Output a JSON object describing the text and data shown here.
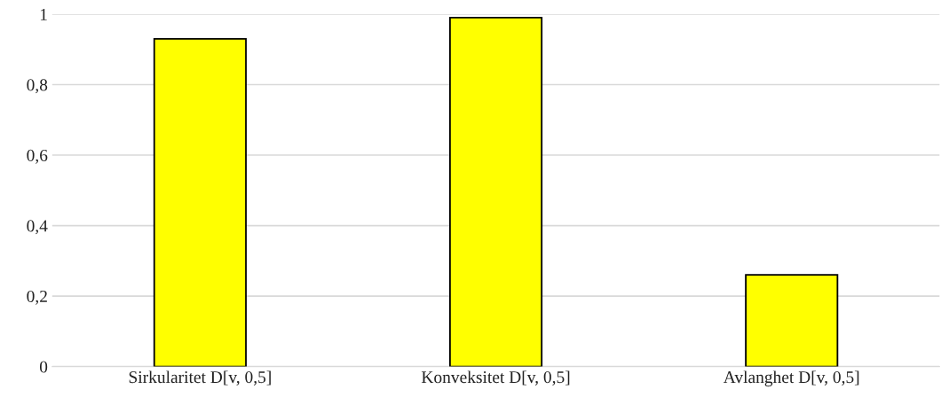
{
  "chart_data": {
    "type": "bar",
    "categories": [
      "Sirkularitet D[v, 0,5]",
      "Konveksitet D[v, 0,5]",
      "Avlanghet D[v, 0,5]"
    ],
    "values": [
      0.93,
      0.99,
      0.26
    ],
    "color": "#ffff00",
    "ylim": [
      0,
      1
    ],
    "yticks": [
      0,
      {
        "value": 0.2,
        "label": "0,2"
      },
      {
        "value": 0.4,
        "label": "0,4"
      },
      {
        "value": 0.6,
        "label": "0,6"
      },
      {
        "value": 0.8,
        "label": "0,8"
      },
      1
    ],
    "grid": "y"
  }
}
